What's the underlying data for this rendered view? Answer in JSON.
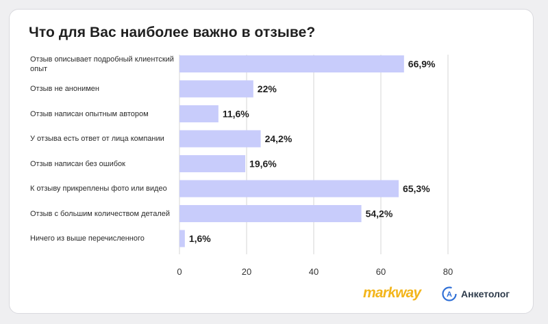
{
  "title": "Что для Вас наиболее важно в отзыве?",
  "chart_data": {
    "type": "bar",
    "orientation": "horizontal",
    "categories": [
      "Отзыв описывает подробный клиентский опыт",
      "Отзыв не анонимен",
      "Отзыв написан опытным автором",
      "У отзыва есть ответ от лица компании",
      "Отзыв написан без ошибок",
      "К отзыву прикреплены фото или видео",
      "Отзыв с большим количеством деталей",
      "Ничего из выше перечисленного"
    ],
    "values": [
      66.9,
      22,
      11.6,
      24.2,
      19.6,
      65.3,
      54.2,
      1.6
    ],
    "value_labels": [
      "66,9%",
      "22%",
      "11,6%",
      "24,2%",
      "19,6%",
      "65,3%",
      "54,2%",
      "1,6%"
    ],
    "xlim": [
      0,
      80
    ],
    "xticks": [
      0,
      20,
      40,
      60,
      80
    ],
    "grid": "vertical",
    "bar_color": "#c8ccfb",
    "grid_color": "#d6d6d6"
  },
  "logos": {
    "markway": "markway",
    "anketolog": "Анкетолог",
    "markway_color": "#f3b51b",
    "anketolog_color": "#2f6fd6"
  }
}
